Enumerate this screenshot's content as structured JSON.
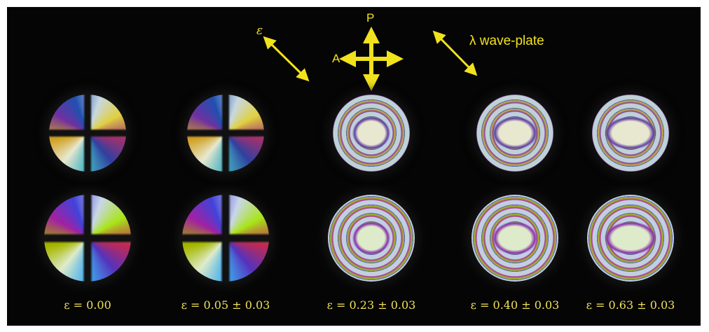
{
  "labels": {
    "strain_arrow": "ε",
    "polarizer": "P",
    "analyzer": "A",
    "wave_plate": "λ wave-plate"
  },
  "captions": [
    "ε = 0.00",
    "ε = 0.05 ± 0.03",
    "ε = 0.23 ± 0.03",
    "ε = 0.40 ± 0.03",
    "ε = 0.63 ± 0.03"
  ]
}
